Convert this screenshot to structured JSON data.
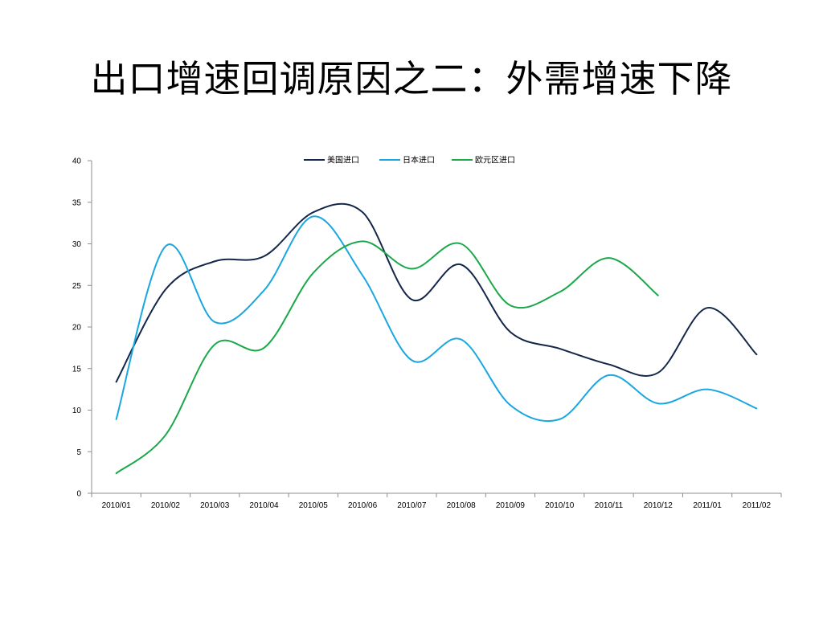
{
  "slide": {
    "title": "出口增速回调原因之二：外需增速下降"
  },
  "chart_data": {
    "type": "line",
    "title": "",
    "xlabel": "",
    "ylabel": "",
    "ylim": [
      0,
      40
    ],
    "yticks": [
      0,
      5,
      10,
      15,
      20,
      25,
      30,
      35,
      40
    ],
    "grid": false,
    "legend_position": "top",
    "smooth": true,
    "categories": [
      "2010/01",
      "2010/02",
      "2010/03",
      "2010/04",
      "2010/05",
      "2010/06",
      "2010/07",
      "2010/08",
      "2010/09",
      "2010/10",
      "2010/11",
      "2010/12",
      "2011/01",
      "2011/02"
    ],
    "series": [
      {
        "name": "美国进口",
        "color": "#14274a",
        "values": [
          13.4,
          24.5,
          27.9,
          28.5,
          33.8,
          33.8,
          23.3,
          27.5,
          19.4,
          17.4,
          15.5,
          14.5,
          22.3,
          16.7
        ]
      },
      {
        "name": "日本进口",
        "color": "#1aa7e0",
        "values": [
          8.9,
          29.7,
          20.6,
          24.4,
          33.3,
          26.2,
          16.0,
          18.5,
          10.6,
          8.9,
          14.2,
          10.8,
          12.5,
          10.2
        ]
      },
      {
        "name": "欧元区进口",
        "color": "#1aa84a",
        "values": [
          2.4,
          7.0,
          17.9,
          17.5,
          26.5,
          30.3,
          27.0,
          30.0,
          22.6,
          24.2,
          28.3,
          23.8,
          null,
          null
        ]
      }
    ]
  }
}
